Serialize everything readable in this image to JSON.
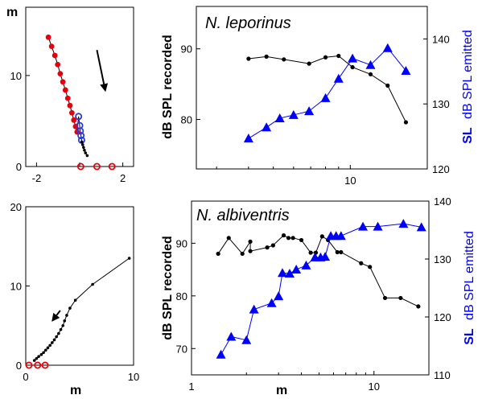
{
  "colors": {
    "black_series": "#000000",
    "red_points": "#e8000b",
    "blue_series": "#0000ff",
    "blue_open_circles": "#2b3bd6"
  },
  "panels": {
    "top_left": {
      "ylabel": "m"
    },
    "bottom_left": {
      "xlabel": "m"
    },
    "top_right": {
      "title": "N. leporinus",
      "ylabel_left": "dB SPL recorded",
      "ylabel_right_bold": "SL",
      "ylabel_right_rest": "dB SPL emitted"
    },
    "bottom_right": {
      "title": "N. albiventris",
      "xlabel": "m",
      "ylabel_left": "dB SPL recorded",
      "ylabel_right_bold": "SL",
      "ylabel_right_rest": "dB SPL emitted"
    }
  },
  "chart_data": [
    {
      "id": "top_left",
      "type": "scatter",
      "xlim": [
        -2.5,
        2.5
      ],
      "ylim": [
        0,
        17.5
      ],
      "x_ticks": [
        -2,
        0,
        2
      ],
      "x_tick_labels": [
        "-2",
        "",
        "2"
      ],
      "y_ticks": [
        0,
        10
      ],
      "y_tick_labels": [
        "0",
        "10"
      ],
      "ylabel": "m",
      "arrow": {
        "from": [
          0.8,
          12.8
        ],
        "to": [
          1.2,
          8.2
        ]
      },
      "series": [
        {
          "style": "red_filled_line",
          "x": [
            -1.45,
            -1.3,
            -1.15,
            -1.02,
            -0.9,
            -0.78,
            -0.66,
            -0.55,
            -0.45,
            -0.36,
            -0.27,
            -0.19,
            -0.12
          ],
          "y": [
            14.2,
            13.2,
            12.2,
            11.2,
            10.2,
            9.3,
            8.4,
            7.5,
            6.7,
            5.9,
            5.1,
            4.4,
            3.8
          ]
        },
        {
          "style": "blue_open_circle",
          "x": [
            -0.05,
            0.0,
            0.03,
            0.06,
            0.09
          ],
          "y": [
            5.5,
            4.5,
            3.9,
            3.4,
            2.9
          ]
        },
        {
          "style": "black_small_line",
          "x": [
            0.1,
            0.14,
            0.18,
            0.22,
            0.27,
            0.35
          ],
          "y": [
            2.7,
            2.4,
            2.1,
            1.8,
            1.5,
            1.2
          ]
        },
        {
          "style": "red_open_circle",
          "x": [
            0.05,
            0.8,
            1.5
          ],
          "y": [
            0,
            0,
            0
          ]
        }
      ]
    },
    {
      "id": "bottom_left",
      "type": "scatter",
      "xlim": [
        0,
        10
      ],
      "ylim": [
        0,
        20
      ],
      "x_ticks": [
        0,
        10
      ],
      "x_tick_labels": [
        "0",
        "10"
      ],
      "y_ticks": [
        0,
        10,
        20
      ],
      "y_tick_labels": [
        "0",
        "10",
        "20"
      ],
      "xlabel": "m",
      "arrow": {
        "from": [
          3.2,
          6.9
        ],
        "to": [
          2.4,
          5.5
        ]
      },
      "series": [
        {
          "style": "black_small_line",
          "x": [
            0.8,
            1.0,
            1.2,
            1.45,
            1.65,
            1.85,
            2.05,
            2.25,
            2.45,
            2.65,
            2.85,
            3.05,
            3.25,
            3.45,
            3.6,
            3.8,
            4.1,
            4.6,
            6.2,
            9.6
          ],
          "y": [
            0.6,
            0.85,
            1.1,
            1.35,
            1.6,
            1.9,
            2.2,
            2.5,
            2.85,
            3.2,
            3.6,
            4.0,
            4.5,
            5.0,
            5.6,
            6.3,
            7.2,
            8.2,
            10.2,
            13.5
          ]
        },
        {
          "style": "red_open_circle",
          "x": [
            0.3,
            1.1,
            1.8
          ],
          "y": [
            0,
            0,
            0
          ]
        }
      ]
    },
    {
      "id": "top_right",
      "type": "line",
      "x_scale": "log",
      "xlim": [
        2.5,
        20
      ],
      "ylim_left": [
        73,
        96
      ],
      "ylim_right": [
        120,
        145
      ],
      "x_ticks": [
        10
      ],
      "x_tick_labels": [
        "10"
      ],
      "y_ticks_left": [
        80,
        90
      ],
      "y_ticks_right": [
        120,
        130,
        140
      ],
      "series": [
        {
          "name": "recorded",
          "axis": "left",
          "marker": "circle",
          "color": "black",
          "x": [
            4.0,
            4.7,
            5.5,
            6.9,
            8.0,
            9.0,
            10.2,
            12.0,
            14.0,
            16.5
          ],
          "y": [
            88.6,
            88.9,
            88.5,
            87.9,
            88.8,
            89.0,
            87.4,
            86.4,
            84.8,
            79.6
          ]
        },
        {
          "name": "emitted",
          "axis": "right",
          "marker": "triangle",
          "color": "blue",
          "x": [
            4.0,
            4.7,
            5.3,
            6.0,
            6.9,
            8.0,
            9.0,
            10.2,
            12.0,
            14.0,
            16.5
          ],
          "y": [
            124.7,
            126.4,
            127.8,
            128.3,
            128.9,
            130.9,
            133.9,
            137.0,
            136.0,
            138.6,
            135.1
          ]
        }
      ]
    },
    {
      "id": "bottom_right",
      "type": "line",
      "x_scale": "log",
      "xlim": [
        1,
        20
      ],
      "ylim_left": [
        65,
        98
      ],
      "ylim_right": [
        110,
        140
      ],
      "x_ticks": [
        1,
        10
      ],
      "x_tick_labels": [
        "1",
        "10"
      ],
      "y_ticks_left": [
        70,
        80,
        90
      ],
      "y_ticks_right": [
        110,
        120,
        130,
        140
      ],
      "series": [
        {
          "name": "recorded",
          "axis": "left",
          "marker": "circle",
          "color": "black",
          "x": [
            1.4,
            1.6,
            1.9,
            2.1,
            2.1,
            2.6,
            2.8,
            3.2,
            3.4,
            3.6,
            4.0,
            4.5,
            4.8,
            5.2,
            5.6,
            6.3,
            6.6,
            8.5,
            9.5,
            11.5,
            14.0,
            17.5
          ],
          "y": [
            88.0,
            91.0,
            88.0,
            90.3,
            88.5,
            89.2,
            89.6,
            91.5,
            91.0,
            91.0,
            90.6,
            88.2,
            88.2,
            91.3,
            90.6,
            88.3,
            88.3,
            86.2,
            85.5,
            79.6,
            79.6,
            78.0
          ]
        },
        {
          "name": "emitted",
          "axis": "right",
          "marker": "triangle",
          "color": "blue",
          "x": [
            1.45,
            1.65,
            2.0,
            2.2,
            2.75,
            3.0,
            3.15,
            3.45,
            3.75,
            4.25,
            4.75,
            5.1,
            5.4,
            5.8,
            6.2,
            6.6,
            8.7,
            10.5,
            14.5,
            18.2
          ],
          "y": [
            113.5,
            116.6,
            116.0,
            121.3,
            122.4,
            123.6,
            127.6,
            127.5,
            128.2,
            128.9,
            130.3,
            130.3,
            130.4,
            134.0,
            134.0,
            134.0,
            135.6,
            135.6,
            136.1,
            135.5
          ]
        }
      ]
    }
  ]
}
